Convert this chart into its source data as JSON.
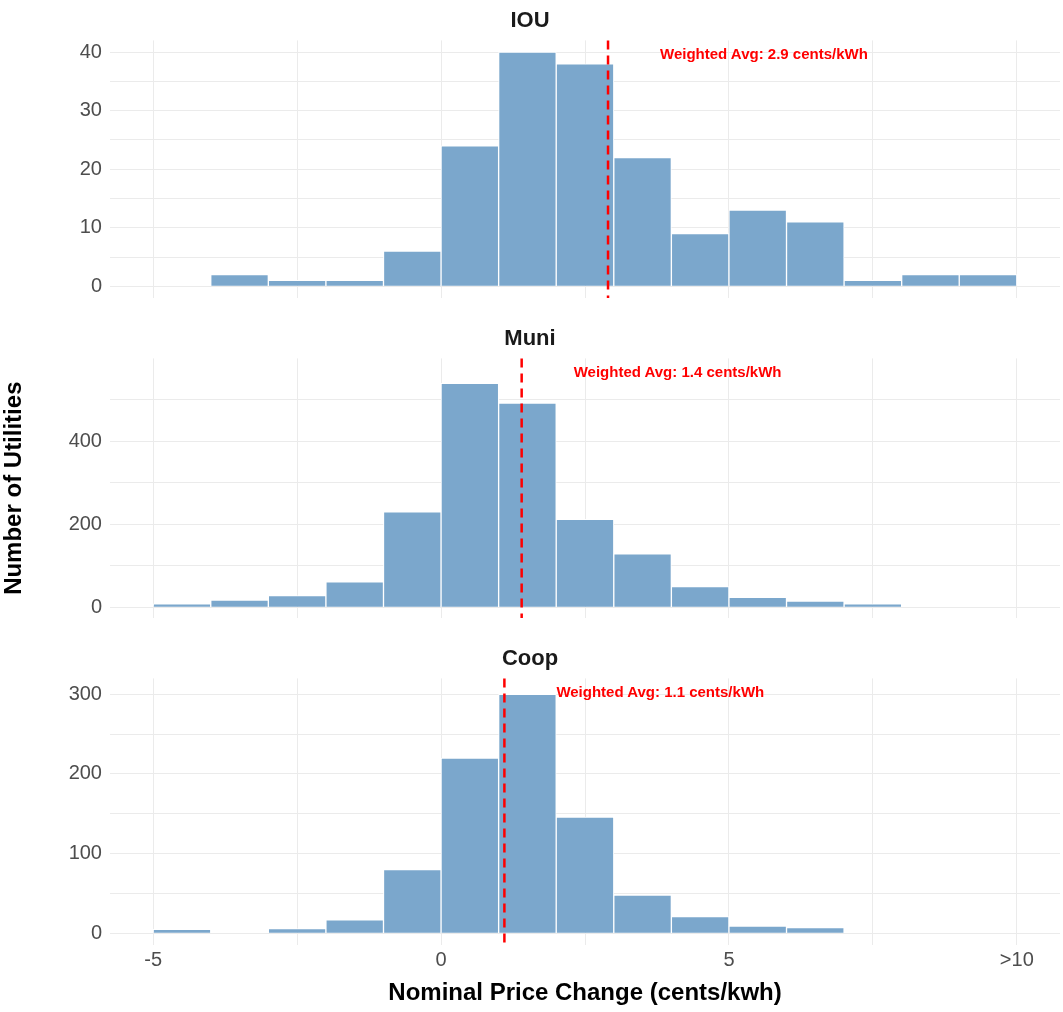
{
  "chart_data": [
    {
      "type": "histogram",
      "title": "IOU",
      "bins": [
        -5,
        -4,
        -3,
        -2,
        -1,
        0,
        1,
        2,
        3,
        4,
        5,
        6,
        7,
        8,
        9,
        10
      ],
      "values": [
        0,
        2,
        1,
        1,
        6,
        24,
        40,
        38,
        22,
        9,
        13,
        11,
        1,
        2,
        2
      ],
      "color": "#7ba7cc",
      "xlim": [
        -5.75,
        10.75
      ],
      "xticks": [
        -5,
        {
          "value": -2.5,
          "label": null
        },
        0,
        {
          "value": 2.5,
          "label": null
        },
        5,
        {
          "value": 7.5,
          "label": null
        },
        {
          "value": 10,
          "label": null
        }
      ],
      "ylim": [
        -2,
        42
      ],
      "yticks": [
        0,
        {
          "value": 5,
          "label": null
        },
        10,
        {
          "value": 15,
          "label": null
        },
        20,
        {
          "value": 25,
          "label": null
        },
        30,
        {
          "value": 35,
          "label": null
        },
        40
      ],
      "grid": true,
      "legend": false,
      "tick_labels": "y",
      "ref_lines": [
        {
          "axis": "x",
          "value": 2.9,
          "label": "Weighted Avg: 2.9 cents/kWh",
          "color": "#ff0000",
          "line_style": "dashed"
        }
      ]
    },
    {
      "type": "histogram",
      "title": "Muni",
      "ylabel": "Number of Utilities",
      "bins": [
        -5,
        -4,
        -3,
        -2,
        -1,
        0,
        1,
        2,
        3,
        4,
        5,
        6,
        7,
        8,
        9,
        10
      ],
      "values": [
        8,
        17,
        28,
        61,
        230,
        540,
        492,
        212,
        129,
        50,
        24,
        15,
        8,
        0,
        0
      ],
      "color": "#7ba7cc",
      "xlim": [
        -5.75,
        10.75
      ],
      "xticks": [
        -5,
        {
          "value": -2.5,
          "label": null
        },
        0,
        {
          "value": 2.5,
          "label": null
        },
        5,
        {
          "value": 7.5,
          "label": null
        },
        {
          "value": 10,
          "label": null
        }
      ],
      "ylim": [
        -26,
        600
      ],
      "yticks": [
        0,
        {
          "value": 100,
          "label": null
        },
        200,
        {
          "value": 300,
          "label": null
        },
        400,
        {
          "value": 500,
          "label": null
        }
      ],
      "grid": true,
      "legend": false,
      "tick_labels": "y",
      "ref_lines": [
        {
          "axis": "x",
          "value": 1.4,
          "label": "Weighted Avg: 1.4 cents/kWh",
          "color": "#ff0000",
          "line_style": "dashed"
        }
      ]
    },
    {
      "type": "histogram",
      "title": "Coop",
      "xlabel": "Nominal Price Change (cents/kwh)",
      "bins": [
        -5,
        -4,
        -3,
        -2,
        -1,
        0,
        1,
        2,
        3,
        4,
        5,
        6,
        7,
        8,
        9,
        10
      ],
      "values": [
        5,
        0,
        6,
        17,
        80,
        220,
        300,
        146,
        48,
        21,
        9,
        7,
        0,
        0,
        0
      ],
      "color": "#7ba7cc",
      "xlim": [
        -5.75,
        10.75
      ],
      "xticks": [
        -5,
        {
          "value": -2.5,
          "label": null
        },
        0,
        {
          "value": 2.5,
          "label": null
        },
        5,
        {
          "value": 7.5,
          "label": null
        },
        {
          "value": 10,
          "label": ">10"
        }
      ],
      "ylim": [
        -15,
        320
      ],
      "yticks": [
        0,
        {
          "value": 50,
          "label": null
        },
        100,
        {
          "value": 150,
          "label": null
        },
        200,
        {
          "value": 250,
          "label": null
        },
        300
      ],
      "grid": true,
      "legend": false,
      "ref_lines": [
        {
          "axis": "x",
          "value": 1.1,
          "label": "Weighted Avg: 1.1 cents/kWh",
          "color": "#ff0000",
          "line_style": "dashed"
        }
      ]
    }
  ]
}
